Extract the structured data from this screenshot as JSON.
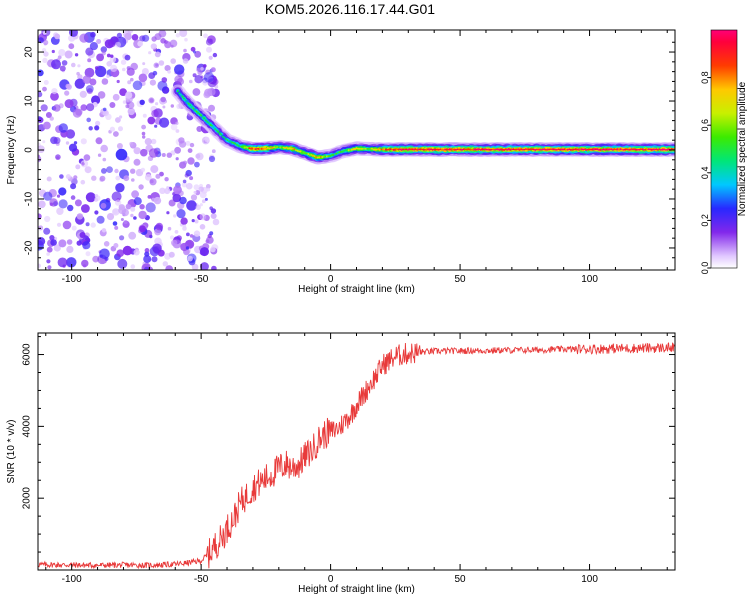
{
  "title": "KOM5.2026.116.17.44.G01",
  "chart_data": [
    {
      "type": "heatmap",
      "xlabel": "Height of straight line (km)",
      "ylabel": "Frequency (Hz)",
      "xlim": [
        -113,
        133
      ],
      "ylim": [
        -24.5,
        24.5
      ],
      "xticks": [
        -100,
        -50,
        0,
        50,
        100
      ],
      "yticks": [
        -20,
        -10,
        0,
        10,
        20
      ],
      "colorbar": {
        "label": "Normalized spectral amplitude",
        "range": [
          0,
          1
        ],
        "ticks": [
          "0.0",
          "0.2",
          "0.4",
          "0.6",
          "0.8"
        ],
        "tick_values": [
          0,
          0.2,
          0.4,
          0.6,
          0.8
        ]
      },
      "noise_region_x": [
        -113,
        -48
      ],
      "signal_track": [
        {
          "x": -59,
          "freq": 12,
          "amp": 0.45
        },
        {
          "x": -55,
          "freq": 9.5,
          "amp": 0.5
        },
        {
          "x": -50,
          "freq": 7,
          "amp": 0.5
        },
        {
          "x": -45,
          "freq": 4.5,
          "amp": 0.45
        },
        {
          "x": -40,
          "freq": 2,
          "amp": 0.45
        },
        {
          "x": -35,
          "freq": 0.8,
          "amp": 0.5
        },
        {
          "x": -30,
          "freq": 0.2,
          "amp": 0.9
        },
        {
          "x": -25,
          "freq": 0.3,
          "amp": 0.85
        },
        {
          "x": -20,
          "freq": 0.6,
          "amp": 0.6
        },
        {
          "x": -15,
          "freq": 0.3,
          "amp": 0.75
        },
        {
          "x": -10,
          "freq": -0.6,
          "amp": 0.6
        },
        {
          "x": -5,
          "freq": -1.5,
          "amp": 0.8
        },
        {
          "x": 0,
          "freq": -1.2,
          "amp": 0.5
        },
        {
          "x": 5,
          "freq": -0.2,
          "amp": 0.5
        },
        {
          "x": 10,
          "freq": 0.3,
          "amp": 0.7
        },
        {
          "x": 15,
          "freq": 0.2,
          "amp": 0.6
        },
        {
          "x": 20,
          "freq": 0.1,
          "amp": 0.8
        },
        {
          "x": 25,
          "freq": 0.1,
          "amp": 0.95
        },
        {
          "x": 133,
          "freq": 0.1,
          "amp": 0.95
        }
      ]
    },
    {
      "type": "line",
      "xlabel": "Height of straight line (km)",
      "ylabel": "SNR (10 * v/v)",
      "xlim": [
        -113,
        133
      ],
      "ylim": [
        0,
        6600
      ],
      "xticks": [
        -100,
        -50,
        0,
        50,
        100
      ],
      "yticks": [
        2000,
        4000,
        6000
      ],
      "series": [
        {
          "name": "SNR",
          "color": "#e83a3a",
          "x": [
            -113,
            -100,
            -90,
            -80,
            -70,
            -60,
            -55,
            -50,
            -47,
            -45,
            -42,
            -40,
            -37,
            -35,
            -32,
            -30,
            -27,
            -25,
            -22,
            -20,
            -17,
            -15,
            -12,
            -10,
            -7,
            -5,
            -2,
            0,
            3,
            5,
            8,
            10,
            13,
            15,
            18,
            20,
            23,
            25,
            28,
            30,
            33,
            35,
            40,
            45,
            50,
            55,
            60,
            65,
            70,
            75,
            80,
            85,
            90,
            95,
            100,
            105,
            110,
            115,
            120,
            125,
            130,
            133
          ],
          "values": [
            150,
            140,
            130,
            140,
            130,
            160,
            200,
            260,
            450,
            650,
            900,
            1150,
            1500,
            1850,
            2100,
            2300,
            2450,
            2550,
            2700,
            2850,
            2950,
            2850,
            2950,
            3150,
            3350,
            3600,
            3800,
            3850,
            3950,
            4100,
            4350,
            4600,
            4900,
            5150,
            5450,
            5700,
            5850,
            5950,
            6000,
            6030,
            6050,
            6070,
            6090,
            6100,
            6100,
            6110,
            6110,
            6120,
            6120,
            6125,
            6130,
            6140,
            6150,
            6150,
            6160,
            6160,
            6170,
            6170,
            6180,
            6180,
            6190,
            6190
          ]
        }
      ]
    }
  ]
}
